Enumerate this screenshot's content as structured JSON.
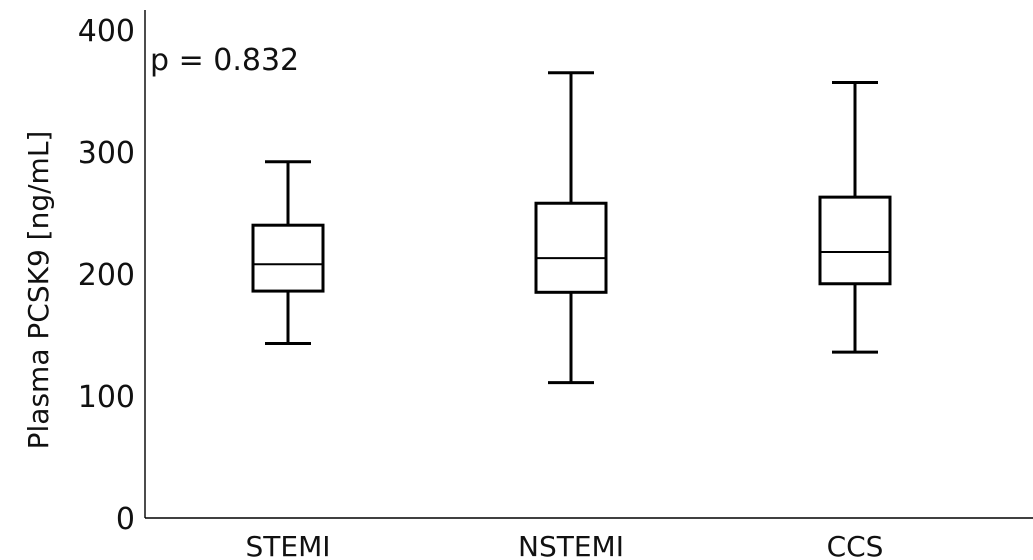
{
  "chart_data": {
    "type": "box",
    "title": "",
    "xlabel": "",
    "ylabel": "Plasma PCSK9 [ng/mL]",
    "ylim": [
      0,
      400
    ],
    "yticks": [
      0,
      100,
      200,
      300,
      400
    ],
    "ytick_labels": [
      "0",
      "100",
      "200",
      "300",
      "400"
    ],
    "annotation": "p = 0.832",
    "grid": false,
    "categories": [
      "STEMI",
      "NSTEMI",
      "CCS"
    ],
    "boxes": [
      {
        "category": "STEMI",
        "min": 143,
        "q1": 186,
        "median": 208,
        "q3": 240,
        "max": 292
      },
      {
        "category": "NSTEMI",
        "min": 111,
        "q1": 185,
        "median": 213,
        "q3": 258,
        "max": 365
      },
      {
        "category": "CCS",
        "min": 136,
        "q1": 192,
        "median": 218,
        "q3": 263,
        "max": 357
      }
    ]
  }
}
